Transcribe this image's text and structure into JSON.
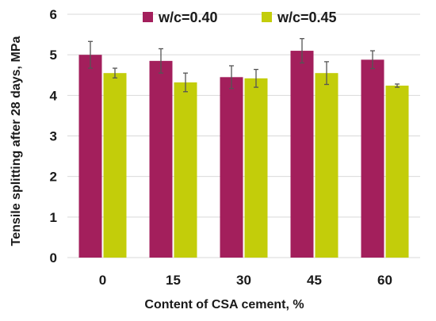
{
  "chart_data": {
    "type": "bar",
    "categories": [
      "0",
      "15",
      "30",
      "45",
      "60"
    ],
    "series": [
      {
        "name": "w/c=0.40",
        "color": "#a31f5c",
        "values": [
          5.0,
          4.85,
          4.45,
          5.1,
          4.88
        ],
        "errors": [
          0.33,
          0.3,
          0.28,
          0.3,
          0.22
        ]
      },
      {
        "name": "w/c=0.45",
        "color": "#c3cd0a",
        "values": [
          4.55,
          4.32,
          4.42,
          4.55,
          4.24
        ],
        "errors": [
          0.12,
          0.23,
          0.22,
          0.28,
          0.04
        ]
      }
    ],
    "xlabel": "Content of CSA cement, %",
    "ylabel": "Tensile splitting after 28 days, MPa",
    "ylim": [
      0,
      6
    ],
    "yticks": [
      "0",
      "1",
      "2",
      "3",
      "4",
      "5",
      "6"
    ],
    "grid": true,
    "legend_position": "top"
  }
}
